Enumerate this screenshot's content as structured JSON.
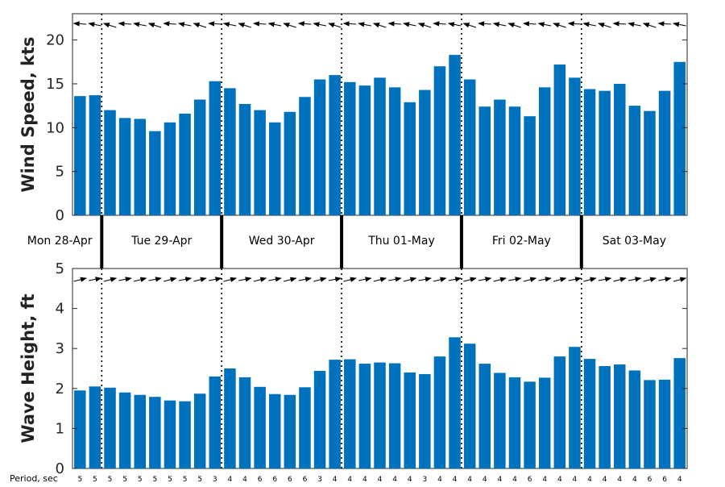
{
  "chart_data": [
    {
      "type": "bar",
      "ylabel": "Wind Speed, kts",
      "ylim": [
        0,
        23
      ],
      "yticks": [
        0,
        5,
        10,
        15,
        20
      ],
      "color": "#0072BD",
      "values": [
        13.6,
        13.7,
        12.0,
        11.1,
        11.0,
        9.6,
        10.6,
        11.6,
        13.2,
        15.3,
        14.5,
        12.7,
        12.0,
        10.6,
        11.8,
        13.5,
        15.5,
        16.0,
        15.2,
        14.8,
        15.7,
        14.6,
        12.9,
        14.3,
        17.0,
        18.3,
        15.5,
        12.4,
        13.2,
        12.4,
        11.3,
        14.6,
        17.2,
        15.7,
        14.4,
        14.2,
        15.0,
        12.5,
        11.9,
        14.2,
        17.5
      ],
      "direction_arrows": "left (wind direction)",
      "grid": false
    },
    {
      "type": "bar",
      "ylabel": "Wave Height, ft",
      "ylim": [
        0,
        5
      ],
      "yticks": [
        0,
        1,
        2,
        3,
        4,
        5
      ],
      "color": "#0072BD",
      "values": [
        1.95,
        2.05,
        2.02,
        1.9,
        1.84,
        1.79,
        1.7,
        1.68,
        1.87,
        2.3,
        2.5,
        2.28,
        2.04,
        1.86,
        1.84,
        2.03,
        2.44,
        2.72,
        2.73,
        2.62,
        2.65,
        2.63,
        2.4,
        2.36,
        2.8,
        3.28,
        3.12,
        2.62,
        2.39,
        2.28,
        2.17,
        2.27,
        2.8,
        3.04,
        2.74,
        2.56,
        2.6,
        2.45,
        2.21,
        2.22,
        2.76
      ],
      "direction_arrows": "right (wave direction)",
      "grid": false
    }
  ],
  "days": [
    "Mon 28-Apr",
    "Tue 29-Apr",
    "Wed 30-Apr",
    "Thu 01-May",
    "Fri 02-May",
    "Sat 03-May"
  ],
  "period_label": "Period, sec",
  "periods": [
    "5",
    "5",
    "5",
    "5",
    "5",
    "5",
    "5",
    "5",
    "5",
    "3",
    "4",
    "4",
    "6",
    "6",
    "6",
    "6",
    "3",
    "4",
    "4",
    "4",
    "4",
    "4",
    "4",
    "3",
    "4",
    "4",
    "4",
    "4",
    "4",
    "4",
    "6",
    "4",
    "4",
    "4",
    "4",
    "4",
    "4",
    "4",
    "6",
    "6",
    "4"
  ]
}
